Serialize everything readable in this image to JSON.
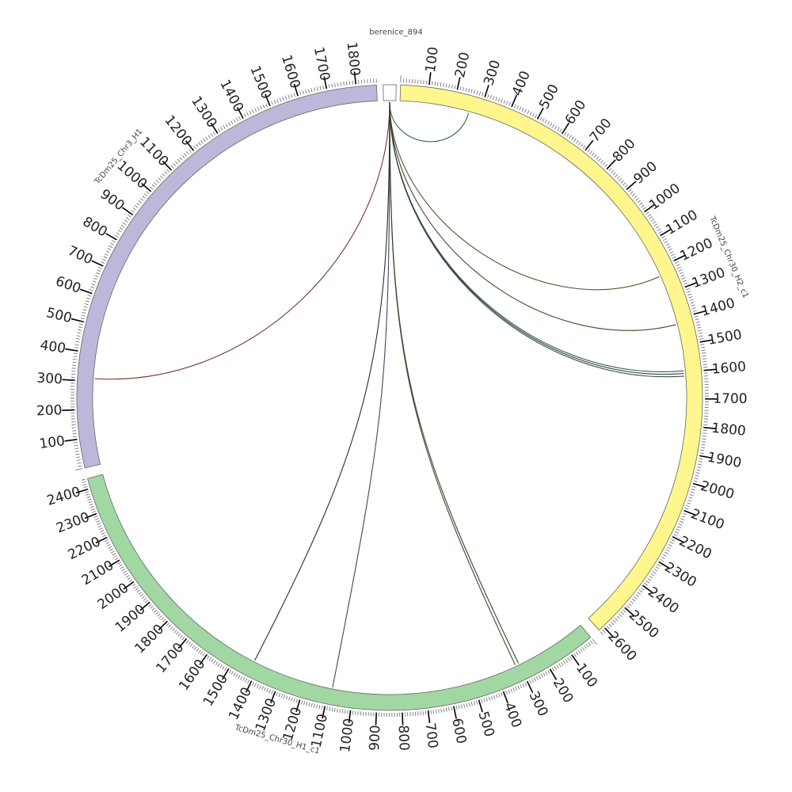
{
  "diagram": {
    "type": "circos",
    "segments": [
      {
        "id": "berenice",
        "label": "berenice_894",
        "length": 2,
        "color": "#ffffff",
        "label_ticks": []
      },
      {
        "id": "yellow",
        "label": "TcDm25_Chr30_H2_c1",
        "length": 2620,
        "color": "#fff68e",
        "label_ticks": [
          100,
          200,
          300,
          400,
          500,
          600,
          700,
          800,
          900,
          1000,
          1100,
          1200,
          1300,
          1400,
          1500,
          1600,
          1700,
          1800,
          1900,
          2000,
          2100,
          2200,
          2300,
          2400,
          2500,
          2600
        ]
      },
      {
        "id": "green",
        "label": "TcDm25_Chr30_H1_c1",
        "length": 2440,
        "color": "#a1d7a2",
        "label_ticks": [
          100,
          200,
          300,
          400,
          500,
          600,
          700,
          800,
          900,
          1000,
          1100,
          1200,
          1300,
          1400,
          1500,
          1600,
          1700,
          1800,
          1900,
          2000,
          2100,
          2200,
          2300,
          2400
        ]
      },
      {
        "id": "purple",
        "label": "TcDm25_Chr3_H1",
        "length": 1870,
        "color": "#bcb8da",
        "label_ticks": [
          100,
          200,
          300,
          400,
          500,
          600,
          700,
          800,
          900,
          1000,
          1100,
          1200,
          1300,
          1400,
          1500,
          1600,
          1700,
          1800
        ]
      }
    ],
    "links": [
      {
        "from": "berenice",
        "to": "yellow",
        "pos": 260,
        "color": "#2e5e46"
      },
      {
        "from": "berenice",
        "to": "yellow",
        "pos": 1230,
        "color": "#4a4a20"
      },
      {
        "from": "berenice",
        "to": "yellow",
        "pos": 1420,
        "color": "#4a3a20"
      },
      {
        "from": "berenice",
        "to": "yellow",
        "pos": 1595,
        "color": "#2f4f4f"
      },
      {
        "from": "berenice",
        "to": "yellow",
        "pos": 1605,
        "color": "#26364a"
      },
      {
        "from": "berenice",
        "to": "yellow",
        "pos": 1615,
        "color": "#2a4a30"
      },
      {
        "from": "berenice",
        "to": "green",
        "pos": 300,
        "color": "#3a3a1e"
      },
      {
        "from": "berenice",
        "to": "green",
        "pos": 315,
        "color": "#2a4a2a"
      },
      {
        "from": "berenice",
        "to": "green",
        "pos": 1085,
        "color": "#3a3a60"
      },
      {
        "from": "berenice",
        "to": "green",
        "pos": 1425,
        "color": "#222222"
      },
      {
        "from": "berenice",
        "to": "purple",
        "pos": 310,
        "color": "#6a3020"
      }
    ]
  }
}
